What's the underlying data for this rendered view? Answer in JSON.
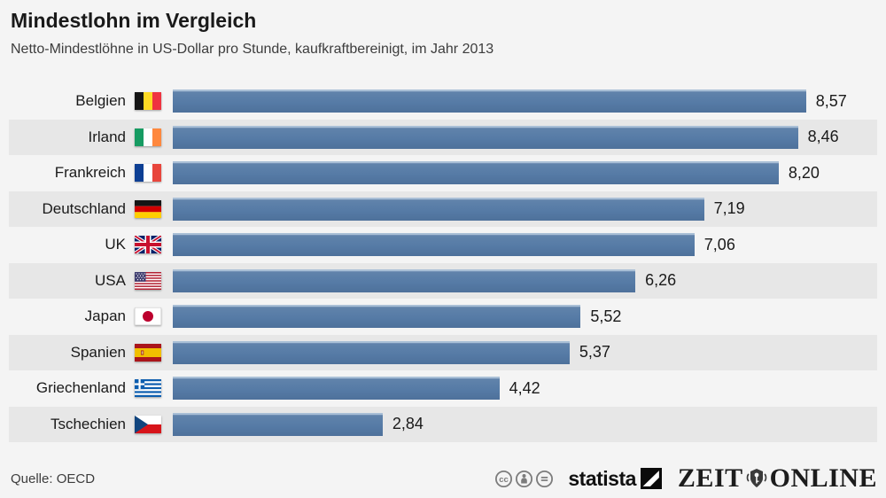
{
  "header": {
    "title": "Mindestlohn im Vergleich",
    "subtitle": "Netto-Mindestlöhne in US-Dollar pro Stunde, kaufkraftbereinigt, im Jahr 2013"
  },
  "chart_data": {
    "type": "bar",
    "orientation": "horizontal",
    "title": "Mindestlohn im Vergleich",
    "subtitle": "Netto-Mindestlöhne in US-Dollar pro Stunde, kaufkraftbereinigt, im Jahr 2013",
    "categories": [
      "Belgien",
      "Irland",
      "Frankreich",
      "Deutschland",
      "UK",
      "USA",
      "Japan",
      "Spanien",
      "Griechenland",
      "Tschechien"
    ],
    "values": [
      8.57,
      8.46,
      8.2,
      7.19,
      7.06,
      6.26,
      5.52,
      5.37,
      4.42,
      2.84
    ],
    "value_labels": [
      "8,57",
      "8,46",
      "8,20",
      "7,19",
      "7,06",
      "6,26",
      "5,52",
      "5,37",
      "4,42",
      "2,84"
    ],
    "flags": [
      "belgium",
      "ireland",
      "france",
      "germany",
      "uk",
      "usa",
      "japan",
      "spain",
      "greece",
      "czech"
    ],
    "flag_icon_names": [
      "flag-belgium-icon",
      "flag-ireland-icon",
      "flag-france-icon",
      "flag-germany-icon",
      "flag-uk-icon",
      "flag-usa-icon",
      "flag-japan-icon",
      "flag-spain-icon",
      "flag-greece-icon",
      "flag-czech-icon"
    ],
    "xlim": [
      0,
      9.5
    ],
    "grid": false,
    "legend": false,
    "bar_color": "#567ba6",
    "stripe_color": "#e7e7e7",
    "background_color": "#f4f4f4"
  },
  "footer": {
    "source": "Quelle: OECD",
    "license_icons": [
      "cc-icon",
      "cc-attribution-icon",
      "cc-no-derivatives-icon"
    ],
    "statista_label": "statista",
    "zeit_left": "ZEIT",
    "zeit_right": "ONLINE"
  }
}
